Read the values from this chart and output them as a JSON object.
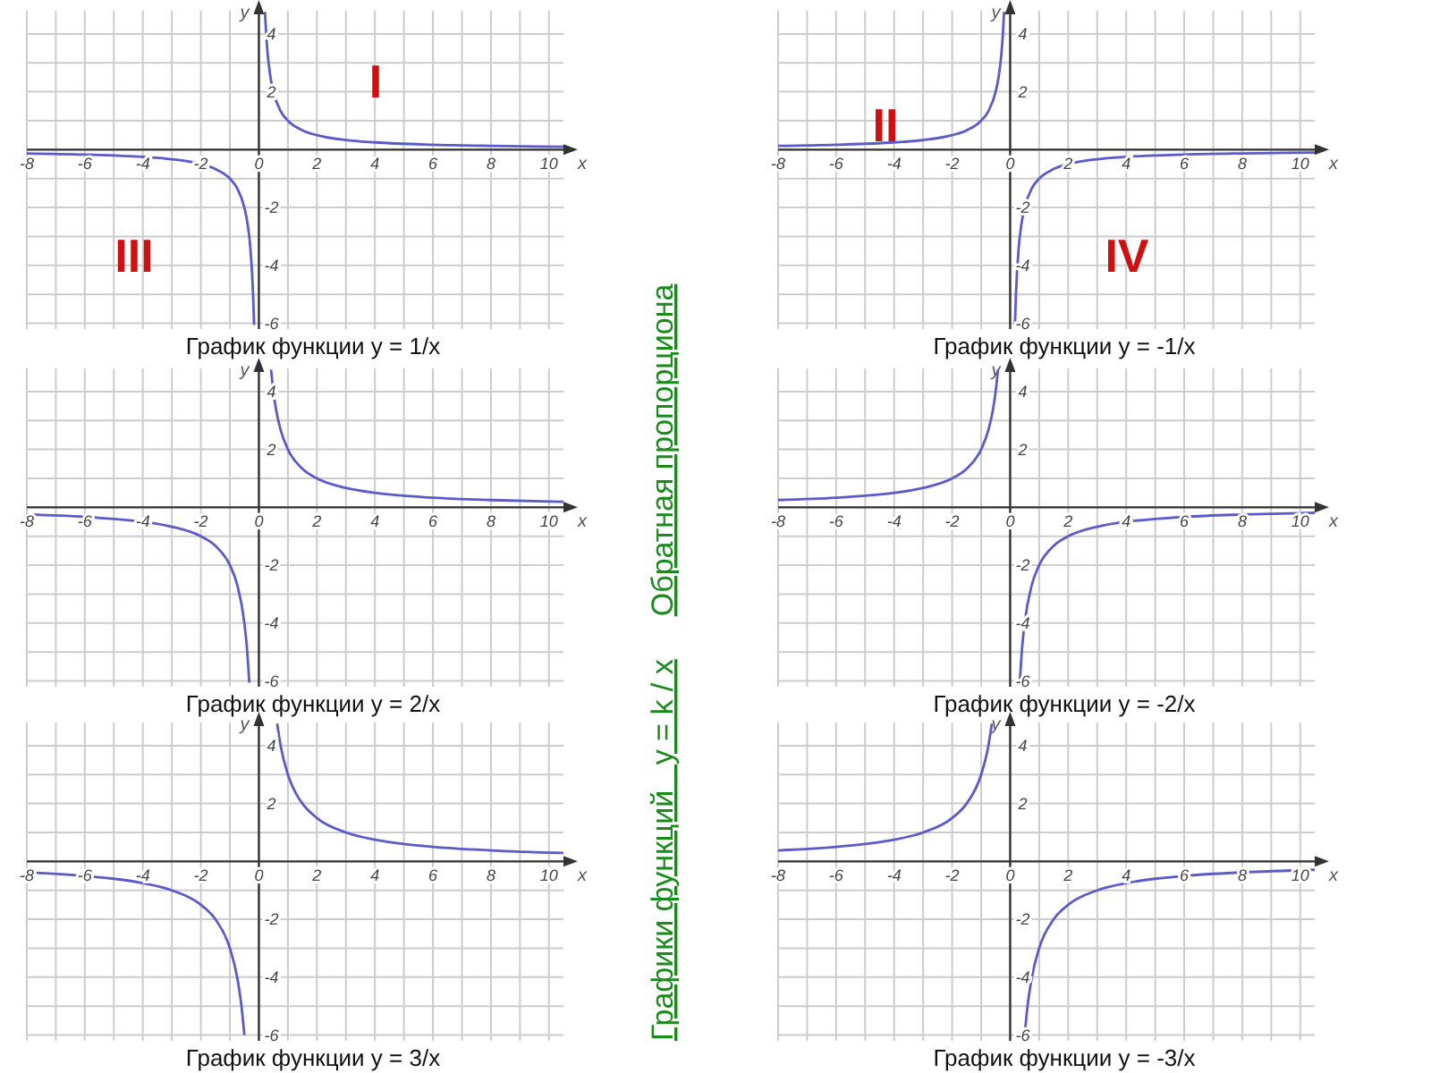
{
  "chart_data": [
    {
      "type": "line",
      "title": "График функции y = 1/x",
      "xlabel": "x",
      "ylabel": "y",
      "xlim": [
        -8,
        10.5
      ],
      "ylim": [
        -6.2,
        4.8
      ],
      "grid": true,
      "xticks": [
        {
          "value": -8,
          "label": "-8"
        },
        {
          "value": -7,
          "label": null
        },
        {
          "value": -6,
          "label": "-6"
        },
        {
          "value": -5,
          "label": null
        },
        {
          "value": -4,
          "label": "-4"
        },
        {
          "value": -3,
          "label": null
        },
        {
          "value": -2,
          "label": "-2"
        },
        {
          "value": -1,
          "label": null
        },
        {
          "value": 0,
          "label": "0"
        },
        {
          "value": 1,
          "label": null
        },
        {
          "value": 2,
          "label": "2"
        },
        {
          "value": 3,
          "label": null
        },
        {
          "value": 4,
          "label": "4"
        },
        {
          "value": 5,
          "label": null
        },
        {
          "value": 6,
          "label": "6"
        },
        {
          "value": 7,
          "label": null
        },
        {
          "value": 8,
          "label": "8"
        },
        {
          "value": 9,
          "label": null
        },
        {
          "value": 10,
          "label": "10"
        }
      ],
      "yticks": [
        {
          "value": -6,
          "label": "-6"
        },
        {
          "value": -5,
          "label": null
        },
        {
          "value": -4,
          "label": "-4"
        },
        {
          "value": -3,
          "label": null
        },
        {
          "value": -2,
          "label": "-2"
        },
        {
          "value": -1,
          "label": null
        },
        {
          "value": 0,
          "label": null
        },
        {
          "value": 1,
          "label": null
        },
        {
          "value": 2,
          "label": "2"
        },
        {
          "value": 3,
          "label": null
        },
        {
          "value": 4,
          "label": "4"
        }
      ],
      "annotations": [
        "I",
        "III"
      ],
      "series": [
        {
          "color": "#5a5ac8",
          "x": [
            0.21,
            0.25,
            0.3,
            0.4,
            0.5,
            0.75,
            1,
            1.5,
            2,
            3,
            4,
            6,
            8,
            10.5
          ],
          "values": [
            4.76,
            4,
            3.33,
            2.5,
            2,
            1.33,
            1,
            0.67,
            0.5,
            0.33,
            0.25,
            0.17,
            0.13,
            0.1
          ]
        },
        {
          "color": "#5a5ac8",
          "x": [
            -8,
            -6,
            -4,
            -3,
            -2,
            -1.5,
            -1,
            -0.75,
            -0.5,
            -0.4,
            -0.3,
            -0.2,
            -0.165
          ],
          "values": [
            -0.13,
            -0.17,
            -0.25,
            -0.33,
            -0.5,
            -0.67,
            -1,
            -1.33,
            -2,
            -2.5,
            -3.33,
            -5,
            -6.06
          ]
        }
      ]
    },
    {
      "type": "line",
      "title": "График функции y = -1/x",
      "xlabel": "x",
      "ylabel": "y",
      "xlim": [
        -8,
        10.5
      ],
      "ylim": [
        -6.2,
        4.8
      ],
      "grid": true,
      "xticks": [
        {
          "value": -8,
          "label": "-8"
        },
        {
          "value": -7,
          "label": null
        },
        {
          "value": -6,
          "label": "-6"
        },
        {
          "value": -5,
          "label": null
        },
        {
          "value": -4,
          "label": "-4"
        },
        {
          "value": -3,
          "label": null
        },
        {
          "value": -2,
          "label": "-2"
        },
        {
          "value": -1,
          "label": null
        },
        {
          "value": 0,
          "label": "0"
        },
        {
          "value": 1,
          "label": null
        },
        {
          "value": 2,
          "label": "2"
        },
        {
          "value": 3,
          "label": null
        },
        {
          "value": 4,
          "label": "4"
        },
        {
          "value": 5,
          "label": null
        },
        {
          "value": 6,
          "label": "6"
        },
        {
          "value": 7,
          "label": null
        },
        {
          "value": 8,
          "label": "8"
        },
        {
          "value": 9,
          "label": null
        },
        {
          "value": 10,
          "label": "10"
        }
      ],
      "yticks": [
        {
          "value": -6,
          "label": "-6"
        },
        {
          "value": -5,
          "label": null
        },
        {
          "value": -4,
          "label": "-4"
        },
        {
          "value": -3,
          "label": null
        },
        {
          "value": -2,
          "label": "-2"
        },
        {
          "value": -1,
          "label": null
        },
        {
          "value": 0,
          "label": null
        },
        {
          "value": 1,
          "label": null
        },
        {
          "value": 2,
          "label": "2"
        },
        {
          "value": 3,
          "label": null
        },
        {
          "value": 4,
          "label": "4"
        }
      ],
      "annotations": [
        "II",
        "IV"
      ],
      "series": [
        {
          "color": "#5a5ac8",
          "x": [
            -8,
            -6,
            -4,
            -3,
            -2,
            -1.5,
            -1,
            -0.75,
            -0.5,
            -0.4,
            -0.3,
            -0.25,
            -0.21
          ],
          "values": [
            0.13,
            0.17,
            0.25,
            0.33,
            0.5,
            0.67,
            1,
            1.33,
            2,
            2.5,
            3.33,
            4,
            4.76
          ]
        },
        {
          "color": "#5a5ac8",
          "x": [
            0.165,
            0.2,
            0.3,
            0.4,
            0.5,
            0.75,
            1,
            1.5,
            2,
            3,
            4,
            6,
            8,
            10.5
          ],
          "values": [
            -6.06,
            -5,
            -3.33,
            -2.5,
            -2,
            -1.33,
            -1,
            -0.67,
            -0.5,
            -0.33,
            -0.25,
            -0.17,
            -0.13,
            -0.1
          ]
        }
      ]
    },
    {
      "type": "line",
      "title": "График функции y = 2/x",
      "xlabel": "x",
      "ylabel": "y",
      "xlim": [
        -8,
        10.5
      ],
      "ylim": [
        -6.2,
        4.8
      ],
      "grid": true,
      "xticks": [
        {
          "value": -8,
          "label": "-8"
        },
        {
          "value": -7,
          "label": null
        },
        {
          "value": -6,
          "label": "-6"
        },
        {
          "value": -5,
          "label": null
        },
        {
          "value": -4,
          "label": "-4"
        },
        {
          "value": -3,
          "label": null
        },
        {
          "value": -2,
          "label": "-2"
        },
        {
          "value": -1,
          "label": null
        },
        {
          "value": 0,
          "label": "0"
        },
        {
          "value": 1,
          "label": null
        },
        {
          "value": 2,
          "label": "2"
        },
        {
          "value": 3,
          "label": null
        },
        {
          "value": 4,
          "label": "4"
        },
        {
          "value": 5,
          "label": null
        },
        {
          "value": 6,
          "label": "6"
        },
        {
          "value": 7,
          "label": null
        },
        {
          "value": 8,
          "label": "8"
        },
        {
          "value": 9,
          "label": null
        },
        {
          "value": 10,
          "label": "10"
        }
      ],
      "yticks": [
        {
          "value": -6,
          "label": "-6"
        },
        {
          "value": -5,
          "label": null
        },
        {
          "value": -4,
          "label": "-4"
        },
        {
          "value": -3,
          "label": null
        },
        {
          "value": -2,
          "label": "-2"
        },
        {
          "value": -1,
          "label": null
        },
        {
          "value": 0,
          "label": null
        },
        {
          "value": 1,
          "label": null
        },
        {
          "value": 2,
          "label": "2"
        },
        {
          "value": 3,
          "label": null
        },
        {
          "value": 4,
          "label": "4"
        }
      ],
      "series": [
        {
          "color": "#5a5ac8",
          "x": [
            0.42,
            0.5,
            0.6,
            0.75,
            1,
            1.5,
            2,
            3,
            4,
            5,
            6,
            8,
            10.5
          ],
          "values": [
            4.76,
            4,
            3.33,
            2.67,
            2,
            1.33,
            1,
            0.67,
            0.5,
            0.4,
            0.33,
            0.25,
            0.19
          ]
        },
        {
          "color": "#5a5ac8",
          "x": [
            -8,
            -6,
            -5,
            -4,
            -3,
            -2,
            -1.5,
            -1,
            -0.75,
            -0.5,
            -0.4,
            -0.33
          ],
          "values": [
            -0.25,
            -0.33,
            -0.4,
            -0.5,
            -0.67,
            -1,
            -1.33,
            -2,
            -2.67,
            -4,
            -5,
            -6.06
          ]
        }
      ]
    },
    {
      "type": "line",
      "title": "График функции y = -2/x",
      "xlabel": "x",
      "ylabel": "y",
      "xlim": [
        -8,
        10.5
      ],
      "ylim": [
        -6.2,
        4.8
      ],
      "grid": true,
      "xticks": [
        {
          "value": -8,
          "label": "-8"
        },
        {
          "value": -7,
          "label": null
        },
        {
          "value": -6,
          "label": "-6"
        },
        {
          "value": -5,
          "label": null
        },
        {
          "value": -4,
          "label": "-4"
        },
        {
          "value": -3,
          "label": null
        },
        {
          "value": -2,
          "label": "-2"
        },
        {
          "value": -1,
          "label": null
        },
        {
          "value": 0,
          "label": "0"
        },
        {
          "value": 1,
          "label": null
        },
        {
          "value": 2,
          "label": "2"
        },
        {
          "value": 3,
          "label": null
        },
        {
          "value": 4,
          "label": "4"
        },
        {
          "value": 5,
          "label": null
        },
        {
          "value": 6,
          "label": "6"
        },
        {
          "value": 7,
          "label": null
        },
        {
          "value": 8,
          "label": "8"
        },
        {
          "value": 9,
          "label": null
        },
        {
          "value": 10,
          "label": "10"
        }
      ],
      "yticks": [
        {
          "value": -6,
          "label": "-6"
        },
        {
          "value": -5,
          "label": null
        },
        {
          "value": -4,
          "label": "-4"
        },
        {
          "value": -3,
          "label": null
        },
        {
          "value": -2,
          "label": "-2"
        },
        {
          "value": -1,
          "label": null
        },
        {
          "value": 0,
          "label": null
        },
        {
          "value": 1,
          "label": null
        },
        {
          "value": 2,
          "label": "2"
        },
        {
          "value": 3,
          "label": null
        },
        {
          "value": 4,
          "label": "4"
        }
      ],
      "series": [
        {
          "color": "#5a5ac8",
          "x": [
            -8,
            -6,
            -5,
            -4,
            -3,
            -2,
            -1.5,
            -1,
            -0.75,
            -0.6,
            -0.5,
            -0.42
          ],
          "values": [
            0.25,
            0.33,
            0.4,
            0.5,
            0.67,
            1,
            1.33,
            2,
            2.67,
            3.33,
            4,
            4.76
          ]
        },
        {
          "color": "#5a5ac8",
          "x": [
            0.33,
            0.4,
            0.5,
            0.75,
            1,
            1.5,
            2,
            3,
            4,
            5,
            6,
            8,
            10.5
          ],
          "values": [
            -6.06,
            -5,
            -4,
            -2.67,
            -2,
            -1.33,
            -1,
            -0.67,
            -0.5,
            -0.4,
            -0.33,
            -0.25,
            -0.19
          ]
        }
      ]
    },
    {
      "type": "line",
      "title": "График функции y = 3/x",
      "xlabel": "x",
      "ylabel": "y",
      "xlim": [
        -8,
        10.5
      ],
      "ylim": [
        -6.2,
        4.8
      ],
      "grid": true,
      "xticks": [
        {
          "value": -8,
          "label": "-8"
        },
        {
          "value": -7,
          "label": null
        },
        {
          "value": -6,
          "label": "-6"
        },
        {
          "value": -5,
          "label": null
        },
        {
          "value": -4,
          "label": "-4"
        },
        {
          "value": -3,
          "label": null
        },
        {
          "value": -2,
          "label": "-2"
        },
        {
          "value": -1,
          "label": null
        },
        {
          "value": 0,
          "label": "0"
        },
        {
          "value": 1,
          "label": null
        },
        {
          "value": 2,
          "label": "2"
        },
        {
          "value": 3,
          "label": null
        },
        {
          "value": 4,
          "label": "4"
        },
        {
          "value": 5,
          "label": null
        },
        {
          "value": 6,
          "label": "6"
        },
        {
          "value": 7,
          "label": null
        },
        {
          "value": 8,
          "label": "8"
        },
        {
          "value": 9,
          "label": null
        },
        {
          "value": 10,
          "label": "10"
        }
      ],
      "yticks": [
        {
          "value": -6,
          "label": "-6"
        },
        {
          "value": -5,
          "label": null
        },
        {
          "value": -4,
          "label": "-4"
        },
        {
          "value": -3,
          "label": null
        },
        {
          "value": -2,
          "label": "-2"
        },
        {
          "value": -1,
          "label": null
        },
        {
          "value": 0,
          "label": null
        },
        {
          "value": 1,
          "label": null
        },
        {
          "value": 2,
          "label": "2"
        },
        {
          "value": 3,
          "label": null
        },
        {
          "value": 4,
          "label": "4"
        }
      ],
      "series": [
        {
          "color": "#5a5ac8",
          "x": [
            0.63,
            0.75,
            1,
            1.25,
            1.5,
            2,
            3,
            4,
            5,
            6,
            8,
            10.5
          ],
          "values": [
            4.76,
            4,
            3,
            2.4,
            2,
            1.5,
            1,
            0.75,
            0.6,
            0.5,
            0.38,
            0.29
          ]
        },
        {
          "color": "#5a5ac8",
          "x": [
            -8,
            -6,
            -5,
            -4,
            -3,
            -2,
            -1.5,
            -1,
            -0.75,
            -0.6,
            -0.5
          ],
          "values": [
            -0.38,
            -0.5,
            -0.6,
            -0.75,
            -1,
            -1.5,
            -2,
            -3,
            -4,
            -5,
            -6
          ]
        }
      ]
    },
    {
      "type": "line",
      "title": "График функции y = -3/x",
      "xlabel": "x",
      "ylabel": "y",
      "xlim": [
        -8,
        10.5
      ],
      "ylim": [
        -6.2,
        4.8
      ],
      "grid": true,
      "xticks": [
        {
          "value": -8,
          "label": "-8"
        },
        {
          "value": -7,
          "label": null
        },
        {
          "value": -6,
          "label": "-6"
        },
        {
          "value": -5,
          "label": null
        },
        {
          "value": -4,
          "label": "-4"
        },
        {
          "value": -3,
          "label": null
        },
        {
          "value": -2,
          "label": "-2"
        },
        {
          "value": -1,
          "label": null
        },
        {
          "value": 0,
          "label": "0"
        },
        {
          "value": 1,
          "label": null
        },
        {
          "value": 2,
          "label": "2"
        },
        {
          "value": 3,
          "label": null
        },
        {
          "value": 4,
          "label": "4"
        },
        {
          "value": 5,
          "label": null
        },
        {
          "value": 6,
          "label": "6"
        },
        {
          "value": 7,
          "label": null
        },
        {
          "value": 8,
          "label": "8"
        },
        {
          "value": 9,
          "label": null
        },
        {
          "value": 10,
          "label": "10"
        }
      ],
      "yticks": [
        {
          "value": -6,
          "label": "-6"
        },
        {
          "value": -5,
          "label": null
        },
        {
          "value": -4,
          "label": "-4"
        },
        {
          "value": -3,
          "label": null
        },
        {
          "value": -2,
          "label": "-2"
        },
        {
          "value": -1,
          "label": null
        },
        {
          "value": 0,
          "label": null
        },
        {
          "value": 1,
          "label": null
        },
        {
          "value": 2,
          "label": "2"
        },
        {
          "value": 3,
          "label": null
        },
        {
          "value": 4,
          "label": "4"
        }
      ],
      "series": [
        {
          "color": "#5a5ac8",
          "x": [
            -8,
            -6,
            -5,
            -4,
            -3,
            -2,
            -1.5,
            -1,
            -0.75,
            -0.63
          ],
          "values": [
            0.38,
            0.5,
            0.6,
            0.75,
            1,
            1.5,
            2,
            3,
            4,
            4.76
          ]
        },
        {
          "color": "#5a5ac8",
          "x": [
            0.5,
            0.6,
            0.75,
            1,
            1.5,
            2,
            3,
            4,
            5,
            6,
            8,
            10.5
          ],
          "values": [
            -6,
            -5,
            -4,
            -3,
            -2,
            -1.5,
            -1,
            -0.75,
            -0.6,
            -0.5,
            -0.38,
            -0.29
          ]
        }
      ]
    },
    {
      "type": "other",
      "title": "Графики функций   y = k / x",
      "annotations": [
        "Обратная пропорциона"
      ]
    }
  ]
}
